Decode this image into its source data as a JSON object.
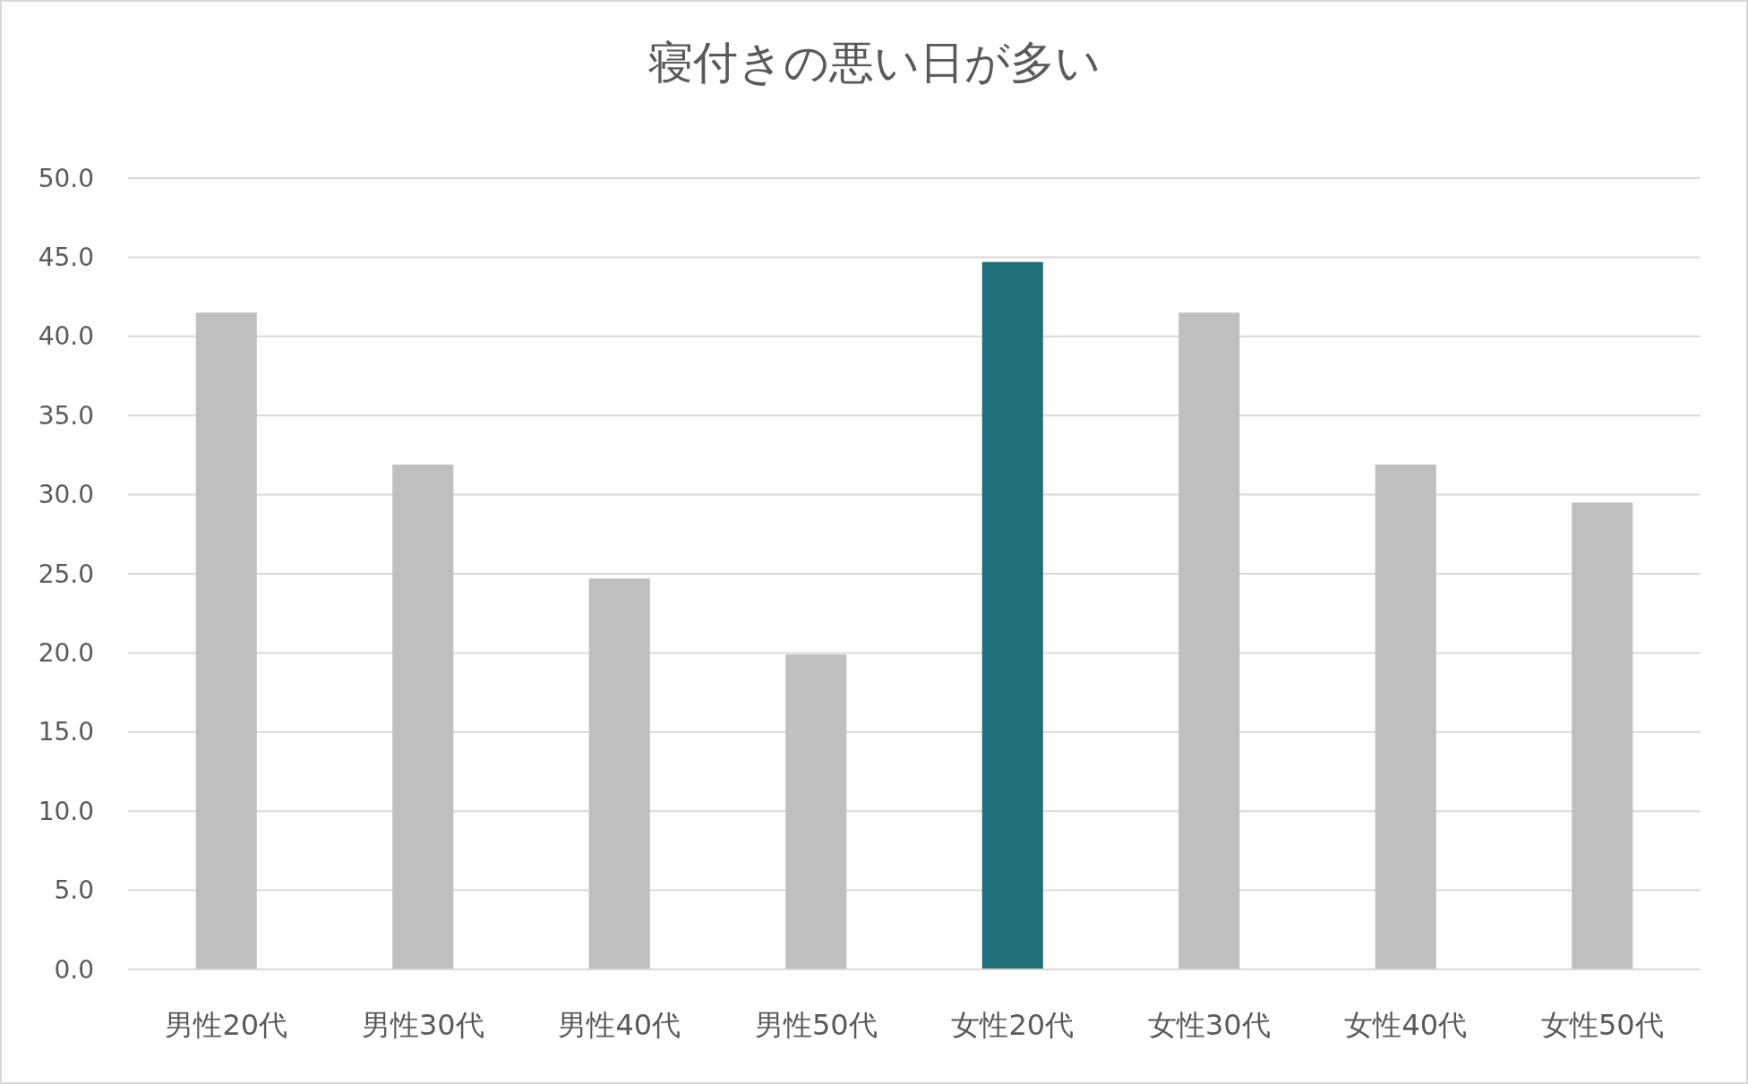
{
  "chart_data": {
    "type": "bar",
    "title": "寝付きの悪い日が多い",
    "categories": [
      "男性20代",
      "男性30代",
      "男性40代",
      "男性50代",
      "女性20代",
      "女性30代",
      "女性40代",
      "女性50代"
    ],
    "values": [
      41.5,
      31.9,
      24.7,
      19.9,
      44.7,
      41.5,
      31.9,
      29.5
    ],
    "colors": [
      "#bfbfbf",
      "#bfbfbf",
      "#bfbfbf",
      "#bfbfbf",
      "#1f6f78",
      "#bfbfbf",
      "#bfbfbf",
      "#bfbfbf"
    ],
    "ylim": [
      0,
      50
    ],
    "yticks": [
      {
        "value": 0,
        "label": "0.0"
      },
      {
        "value": 5,
        "label": "5.0"
      },
      {
        "value": 10,
        "label": "10.0"
      },
      {
        "value": 15,
        "label": "15.0"
      },
      {
        "value": 20,
        "label": "20.0"
      },
      {
        "value": 25,
        "label": "25.0"
      },
      {
        "value": 30,
        "label": "30.0"
      },
      {
        "value": 35,
        "label": "35.0"
      },
      {
        "value": 40,
        "label": "40.0"
      },
      {
        "value": 45,
        "label": "45.0"
      },
      {
        "value": 50,
        "label": "50.0"
      }
    ],
    "grid": "y"
  }
}
